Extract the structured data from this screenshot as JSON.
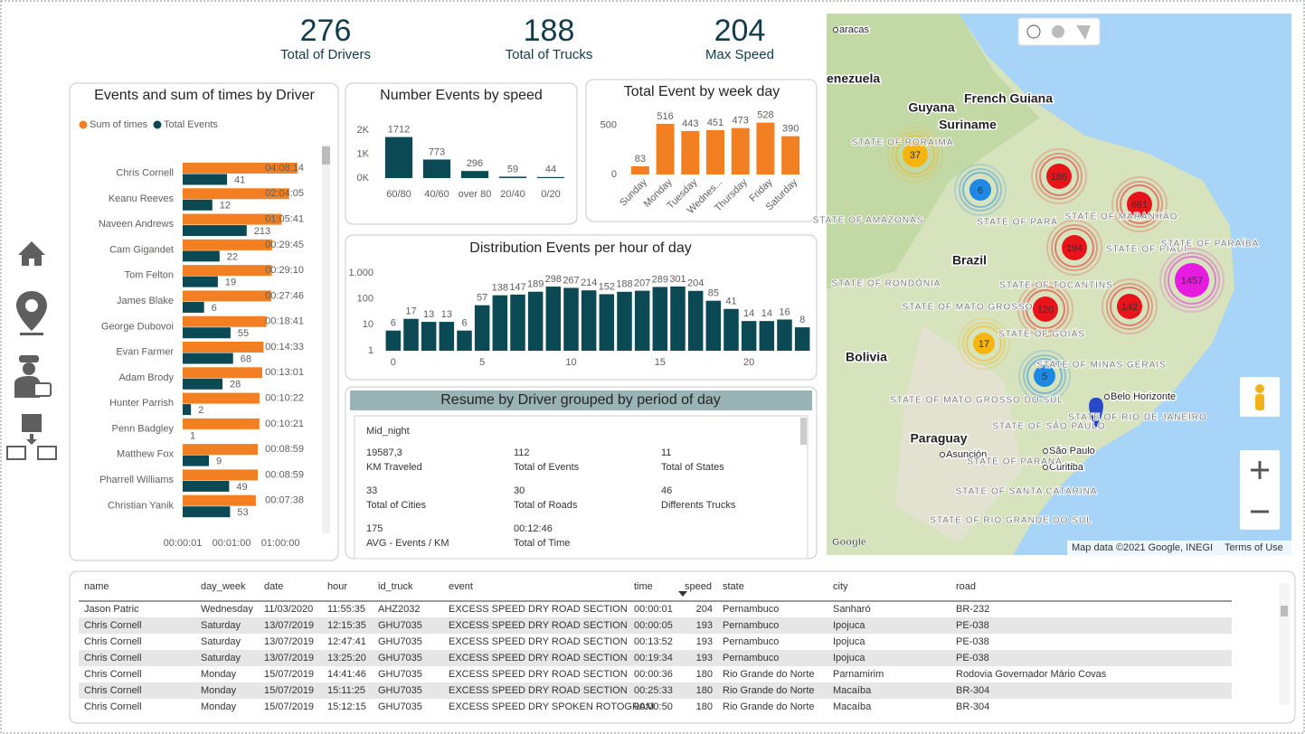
{
  "kpis": [
    {
      "value": 276,
      "label": "Total of Drivers"
    },
    {
      "value": 188,
      "label": "Total of Trucks"
    },
    {
      "value": 204,
      "label": "Max Speed"
    }
  ],
  "chart_data": [
    {
      "type": "hbar",
      "title": "Events and sum of times by Driver",
      "categories": [
        "Chris Cornell",
        "Keanu Reeves",
        "Naveen Andrews",
        "Cam Gigandet",
        "Tom Felton",
        "James Blake",
        "George Dubovoi",
        "Evan Farmer",
        "Adam Brody",
        "Hunter Parrish",
        "Penn Badgley",
        "Matthew Fox",
        "Pharrell Williams",
        "Christian Yanik"
      ],
      "series": [
        {
          "name": "Sum of times",
          "color": "#f28022",
          "values": [
            14894,
            7445,
            3941,
            1785,
            1750,
            1666,
            1121,
            873,
            781,
            622,
            621,
            539,
            539,
            458
          ],
          "value_labels": [
            "04:08:14",
            "02:04:05",
            "01:05:41",
            "00:29:45",
            "00:29:10",
            "00:27:46",
            "00:18:41",
            "00:14:33",
            "00:13:01",
            "00:10:22",
            "00:10:21",
            "00:08:59",
            "00:08:59",
            "00:07:38"
          ]
        },
        {
          "name": "Total Events",
          "color": "#0b4a55",
          "values": [
            41,
            12,
            213,
            22,
            19,
            6,
            55,
            68,
            28,
            2,
            1,
            9,
            49,
            53
          ]
        }
      ],
      "log_scale": true,
      "xlim": [
        1,
        36000
      ],
      "xticks": [
        {
          "value": 1,
          "label": "00:00:01"
        },
        {
          "value": 60,
          "label": "00:01:00"
        },
        {
          "value": 3600,
          "label": "01:00:00"
        }
      ]
    },
    {
      "type": "bar",
      "title": "Number Events by speed",
      "categories": [
        "60/80",
        "40/60",
        "over 80",
        "20/40",
        "0/20"
      ],
      "values": [
        1712,
        773,
        296,
        59,
        44
      ],
      "color": "#0b4a55",
      "ylim": [
        0,
        2300
      ],
      "yticks": [
        {
          "value": 0,
          "label": "0K"
        },
        {
          "value": 1000,
          "label": "1K"
        },
        {
          "value": 2000,
          "label": "2K"
        }
      ]
    },
    {
      "type": "bar",
      "title": "Total Event by week day",
      "categories": [
        "Sunday",
        "Monday",
        "Tuesday",
        "Wednes...",
        "Thursday",
        "Friday",
        "Saturday"
      ],
      "values": [
        83,
        516,
        443,
        451,
        473,
        528,
        390
      ],
      "color": "#f28022",
      "ylim": [
        0,
        580
      ],
      "yticks": [
        0,
        500
      ],
      "rotated_labels": true
    },
    {
      "type": "bar",
      "title": "Distribution Events per hour of day",
      "x": [
        0,
        1,
        2,
        3,
        4,
        5,
        6,
        7,
        8,
        9,
        10,
        11,
        12,
        13,
        14,
        15,
        16,
        17,
        18,
        19,
        20,
        21,
        22,
        23
      ],
      "values": [
        6,
        17,
        13,
        13,
        6,
        57,
        138,
        147,
        189,
        298,
        267,
        214,
        152,
        188,
        207,
        289,
        301,
        204,
        85,
        41,
        14,
        14,
        16,
        8
      ],
      "color": "#0b4a55",
      "log_scale": true,
      "xlim": [
        -0.5,
        23.5
      ],
      "xticks": [
        0,
        5,
        10,
        15,
        20
      ],
      "ylim": [
        1,
        1000
      ],
      "yticks": [
        1,
        10,
        100,
        {
          "value": 1000,
          "label": "1.000"
        }
      ]
    }
  ],
  "resume": {
    "title": "Resume by Driver grouped by period of day",
    "group": "Mid_night",
    "items": [
      {
        "value": "19587,3",
        "label": "KM Traveled"
      },
      {
        "value": "112",
        "label": "Total of Events"
      },
      {
        "value": "11",
        "label": "Total of States"
      },
      {
        "value": "33",
        "label": "Total of Cities"
      },
      {
        "value": "30",
        "label": "Total of Roads"
      },
      {
        "value": "46",
        "label": "Differents Trucks"
      },
      {
        "value": "175",
        "label": "AVG - Events / KM"
      },
      {
        "value": "00:12:46",
        "label": "Total of Time"
      }
    ]
  },
  "map": {
    "clusters": [
      {
        "count": 37,
        "color": "#f6b40e"
      },
      {
        "count": 6,
        "color": "#1e88e5"
      },
      {
        "count": 186,
        "color": "#e8141a"
      },
      {
        "count": 681,
        "color": "#e8141a"
      },
      {
        "count": 194,
        "color": "#e8141a"
      },
      {
        "count": 1457,
        "color": "#e81ce0"
      },
      {
        "count": 120,
        "color": "#e8141a"
      },
      {
        "count": 142,
        "color": "#e8141a"
      },
      {
        "count": 17,
        "color": "#f6b40e"
      },
      {
        "count": 5,
        "color": "#1e88e5"
      }
    ],
    "countries": [
      "enezuela",
      "Guyana",
      "Suriname",
      "French Guiana",
      "Brazil",
      "Bolivia",
      "Paraguay"
    ],
    "cities": [
      "aracas",
      "Belo Horizonte",
      "São Paulo",
      "Curitiba",
      "Asunción"
    ],
    "states": [
      "STATE OF RORAIMA",
      "STATE OF AMAZONAS",
      "STATE OF PARÁ",
      "STATE OF MARANHÃO",
      "STATE OF PIAUÍ",
      "STATE OF PARAÍBA",
      "STATE OF RONDÔNIA",
      "STATE OF TOCANTINS",
      "STATE OF MATO GROSSO",
      "STATE OF GOIÁS",
      "STATE OF MINAS GERAIS",
      "STATE OF MATO GROSSO DO SUL",
      "STATE OF SÃO PAULO",
      "STATE OF RIO DE JANEIRO",
      "STATE OF PARANÁ",
      "STATE OF SANTA CATARINA",
      "STATE OF RIO GRANDE DO SUL"
    ],
    "logo": "Google",
    "attribution": "Map data ©2021 Google, INEGI",
    "terms": "Terms of Use"
  },
  "table": {
    "columns": [
      "name",
      "day_week",
      "date",
      "hour",
      "id_truck",
      "event",
      "time",
      "speed",
      "state",
      "city",
      "road"
    ],
    "rows": [
      [
        "Jason Patric",
        "Wednesday",
        "11/03/2020",
        "11:55:35",
        "AHZ2032",
        "EXCESS SPEED DRY ROAD SECTION",
        "00:00:01",
        204,
        "Pernambuco",
        "Sanharó",
        "BR-232"
      ],
      [
        "Chris Cornell",
        "Saturday",
        "13/07/2019",
        "12:15:35",
        "GHU7035",
        "EXCESS SPEED DRY ROAD SECTION",
        "00:00:05",
        193,
        "Pernambuco",
        "Ipojuca",
        "PE-038"
      ],
      [
        "Chris Cornell",
        "Saturday",
        "13/07/2019",
        "12:47:41",
        "GHU7035",
        "EXCESS SPEED DRY ROAD SECTION",
        "00:13:52",
        193,
        "Pernambuco",
        "Ipojuca",
        "PE-038"
      ],
      [
        "Chris Cornell",
        "Saturday",
        "13/07/2019",
        "13:25:20",
        "GHU7035",
        "EXCESS SPEED DRY ROAD SECTION",
        "00:19:34",
        193,
        "Pernambuco",
        "Ipojuca",
        "PE-038"
      ],
      [
        "Chris Cornell",
        "Monday",
        "15/07/2019",
        "14:41:46",
        "GHU7035",
        "EXCESS SPEED DRY ROAD SECTION",
        "00:00:36",
        180,
        "Rio Grande do Norte",
        "Parnamirim",
        "Rodovia Governador Mário Covas"
      ],
      [
        "Chris Cornell",
        "Monday",
        "15/07/2019",
        "15:11:25",
        "GHU7035",
        "EXCESS SPEED DRY ROAD SECTION",
        "00:25:33",
        180,
        "Rio Grande do Norte",
        "Macaíba",
        "BR-304"
      ],
      [
        "Chris Cornell",
        "Monday",
        "15/07/2019",
        "15:12:15",
        "GHU7035",
        "EXCESS SPEED DRY SPOKEN ROTOGRAM",
        "00:00:50",
        180,
        "Rio Grande do Norte",
        "Macaíba",
        "BR-304"
      ]
    ]
  }
}
